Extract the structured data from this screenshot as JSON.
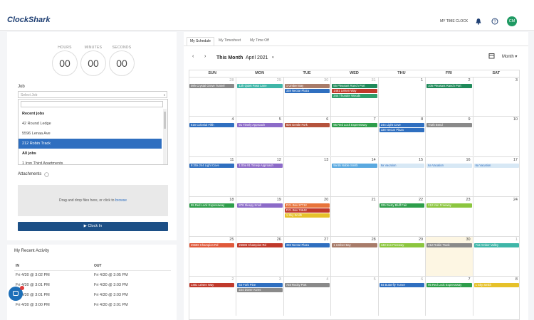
{
  "header": {
    "logo": "ClockShark",
    "time_clock": "MY TIME CLOCK",
    "avatar": "CM"
  },
  "timer": {
    "labels": [
      "HOURS",
      "MINUTES",
      "SECONDS"
    ],
    "values": [
      "00",
      "00",
      "00"
    ]
  },
  "job": {
    "label": "Job",
    "placeholder": "Select Job",
    "groups": [
      {
        "title": "Recent jobs",
        "items": [
          "42 Round Ledge",
          "5596 Lenaa Ave",
          "212 Robin Track"
        ]
      },
      {
        "title": "All jobs",
        "items": [
          "1 Iron Third Apartments"
        ]
      }
    ],
    "selected": "212 Robin Track"
  },
  "attachments": {
    "label": "Attachments",
    "drop_text": "Drag and drop files here, or click to",
    "drop_link": "browse"
  },
  "clock_in": "Clock In",
  "activity": {
    "title": "My Recent Activity",
    "columns": [
      "IN",
      "OUT"
    ],
    "rows": [
      [
        "Fri 4/30 @ 3:02 PM",
        "Fri 4/30 @ 3:05 PM"
      ],
      [
        "Fri 4/30 @ 3:01 PM",
        "Fri 4/30 @ 3:03 PM"
      ],
      [
        "Fri 4/30 @ 3:01 PM",
        "Fri 4/30 @ 3:03 PM"
      ],
      [
        "Fri 4/30 @ 3:00 PM",
        "Fri 4/30 @ 3:01 PM"
      ]
    ]
  },
  "tabs": [
    "My Schedule",
    "My Timesheet",
    "My Time Off"
  ],
  "calendar": {
    "range_label": "This Month",
    "month": "April 2021",
    "view": "Month",
    "weekdays": [
      "SUN",
      "MON",
      "TUE",
      "WED",
      "THU",
      "FRI",
      "SAT"
    ],
    "today": 30,
    "weeks": [
      [
        {
          "day": 28,
          "events": [
            {
              "label": "08h Crystal Grove Tunnel",
              "color": "#8a8a8a"
            }
          ]
        },
        {
          "day": 29,
          "events": [
            {
              "label": "12h Quiet Pass Lane",
              "color": "#3fb6a8"
            }
          ]
        },
        {
          "day": 30,
          "events": [
            {
              "label": "1 Umber Bay",
              "color": "#a87c6a"
            },
            {
              "label": "338 Nectar Plaza",
              "color": "#2f6fc0"
            }
          ]
        },
        {
          "day": 31,
          "events": [
            {
              "label": "55 Pleasant Ranch Port",
              "color": "#1f8a5a"
            },
            {
              "label": "1481 Leisen Way",
              "color": "#c0392b"
            },
            {
              "label": "344 Thunder Woods",
              "color": "#2e9e6b"
            }
          ]
        },
        {
          "day": 1,
          "events": []
        },
        {
          "day": 2,
          "events": [
            {
              "label": "105 Pleasant Ranch Port",
              "color": "#1f8a5a"
            }
          ]
        },
        {
          "day": 3,
          "events": []
        }
      ],
      [
        {
          "day": 4,
          "events": [
            {
              "label": "616 Colonial Fifth",
              "color": "#2f6fc0"
            }
          ]
        },
        {
          "day": 5,
          "events": [
            {
              "label": "91 Timely Approach",
              "color": "#8c6bc8"
            }
          ]
        },
        {
          "day": 6,
          "events": [
            {
              "label": "808 Gentle Fork",
              "color": "#b5533c"
            }
          ]
        },
        {
          "day": 7,
          "events": [
            {
              "label": "95 Red Lock Expressway",
              "color": "#2e9e4b"
            }
          ]
        },
        {
          "day": 8,
          "events": [
            {
              "label": "244 Light Cove",
              "color": "#2f6fc0"
            },
            {
              "label": "338 Nectar Plaza",
              "color": "#2f6fc0"
            }
          ]
        },
        {
          "day": 9,
          "events": [
            {
              "label": "Truth Bend",
              "color": "#8a8a8a"
            }
          ]
        },
        {
          "day": 10,
          "events": []
        }
      ],
      [
        {
          "day": 11,
          "events": [
            {
              "label": "9:30a 244 Light Cove",
              "color": "#2f6fc0"
            }
          ]
        },
        {
          "day": 12,
          "events": [
            {
              "label": "1:00a 91 Timely Approach",
              "color": "#8c6bc8"
            }
          ]
        },
        {
          "day": 13,
          "events": []
        },
        {
          "day": 14,
          "events": [
            {
              "label": "9a 55 Noble Smith",
              "color": "#5aa9e0"
            }
          ]
        },
        {
          "day": 15,
          "events": [
            {
              "label": "9a Vacation",
              "color": "#d7e8f5"
            }
          ]
        },
        {
          "day": 16,
          "events": [
            {
              "label": "6a Vacation",
              "color": "#d7e8f5"
            }
          ]
        },
        {
          "day": 17,
          "events": [
            {
              "label": "6a Vacation",
              "color": "#d7e8f5"
            }
          ]
        }
      ],
      [
        {
          "day": 18,
          "events": [
            {
              "label": "95 Red Lock Expressway",
              "color": "#2e9e4b"
            }
          ]
        },
        {
          "day": 19,
          "events": [
            {
              "label": "878 Sleepy Knoll",
              "color": "#8c6bc8"
            }
          ]
        },
        {
          "day": 20,
          "events": [
            {
              "label": "P.O. Box 27712",
              "color": "#e8743b"
            },
            {
              "label": "P.O. Box 74642",
              "color": "#c0392b"
            },
            {
              "label": "1 Sky Smith",
              "color": "#e6c12a"
            }
          ]
        },
        {
          "day": 21,
          "events": []
        },
        {
          "day": 22,
          "events": [
            {
              "label": "225 Dusty Bluff Fair",
              "color": "#2e9e4b"
            }
          ]
        },
        {
          "day": 23,
          "events": [
            {
              "label": "212 Iron Freeway",
              "color": "#8cc63f"
            }
          ]
        },
        {
          "day": 24,
          "events": []
        }
      ],
      [
        {
          "day": 25,
          "events": [
            {
              "label": "25686 Champion Rd",
              "color": "#e0593b"
            }
          ]
        },
        {
          "day": 26,
          "events": [
            {
              "label": "25686 Champion Rd",
              "color": "#c0392b"
            }
          ]
        },
        {
          "day": 27,
          "events": [
            {
              "label": "338 Nectar Plaza",
              "color": "#2f6fc0"
            }
          ]
        },
        {
          "day": 28,
          "events": [
            {
              "label": "1 Umber Bay",
              "color": "#a87c6a"
            }
          ]
        },
        {
          "day": 29,
          "events": [
            {
              "label": "448 Iron Freeway",
              "color": "#8cc63f"
            }
          ]
        },
        {
          "day": 30,
          "events": [
            {
              "label": "212 Robin Track",
              "color": "#8a8a8a"
            }
          ]
        },
        {
          "day": 1,
          "events": [
            {
              "label": "712 Amber Valley",
              "color": "#3fb6a8"
            }
          ]
        }
      ],
      [
        {
          "day": 2,
          "events": [
            {
              "label": "1481 Leisen Way",
              "color": "#c0392b"
            }
          ]
        },
        {
          "day": 3,
          "events": [
            {
              "label": "64 Fork Pine",
              "color": "#2f6fc0"
            },
            {
              "label": "224 Dover Acres",
              "color": "#8a8a8a"
            }
          ]
        },
        {
          "day": 4,
          "events": [
            {
              "label": "728 Rocky Port",
              "color": "#8a8a8a"
            }
          ]
        },
        {
          "day": 5,
          "events": []
        },
        {
          "day": 6,
          "events": [
            {
              "label": "84 Butterfly Turner",
              "color": "#2f6fc0"
            }
          ]
        },
        {
          "day": 7,
          "events": [
            {
              "label": "95 Red Lock Expressway",
              "color": "#2e9e4b"
            }
          ]
        },
        {
          "day": 8,
          "events": [
            {
              "label": "1 Sky Smith",
              "color": "#e6c12a"
            }
          ]
        }
      ]
    ]
  }
}
